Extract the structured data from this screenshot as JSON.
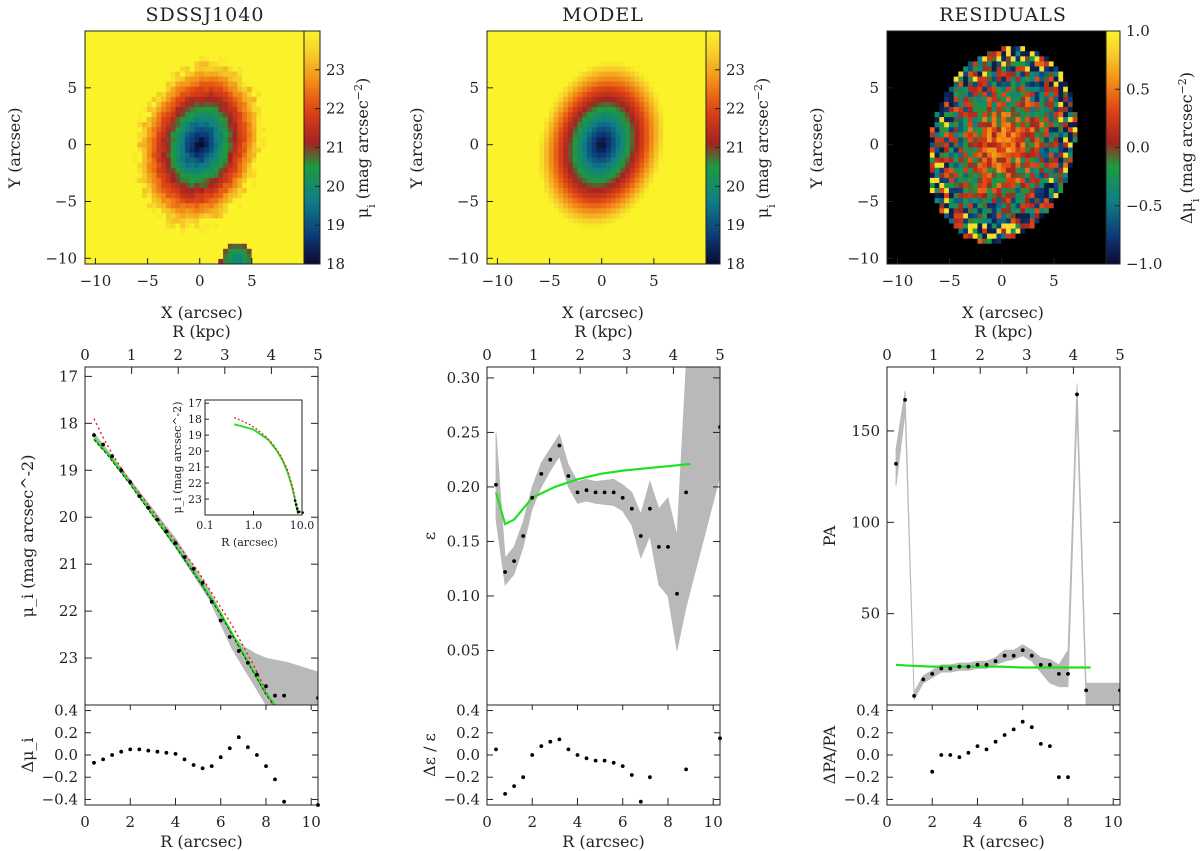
{
  "chart_data": [
    {
      "type": "heatmap",
      "title": "SDSSJ1040",
      "xlabel": "X (arcsec)",
      "ylabel": "Y (arcsec)",
      "xlim": [
        -11,
        10
      ],
      "ylim": [
        -10.5,
        10
      ],
      "xticks": [
        -10,
        -5,
        0,
        5
      ],
      "yticks": [
        -10,
        -5,
        0,
        5
      ],
      "colorbar": {
        "label": "μ_i (mag arcsec^-2)",
        "range": [
          18,
          24
        ],
        "ticks": [
          18,
          19,
          20,
          21,
          22,
          23
        ]
      },
      "image": {
        "center": [
          0,
          0
        ],
        "axis_ratio": 0.78,
        "pa_deg": 20,
        "noisy": true,
        "companion": [
          3.6,
          -10.2
        ]
      }
    },
    {
      "type": "heatmap",
      "title": "MODEL",
      "xlabel": "X (arcsec)",
      "ylabel": "Y (arcsec)",
      "xlim": [
        -11,
        10
      ],
      "ylim": [
        -10.5,
        10
      ],
      "xticks": [
        -10,
        -5,
        0,
        5
      ],
      "yticks": [
        -10,
        -5,
        0,
        5
      ],
      "colorbar": {
        "label": "μ_i (mag arcsec^-2)",
        "range": [
          18,
          24
        ],
        "ticks": [
          18,
          19,
          20,
          21,
          22,
          23
        ]
      },
      "image": {
        "center": [
          0,
          0
        ],
        "axis_ratio": 0.78,
        "pa_deg": 20,
        "noisy": false
      }
    },
    {
      "type": "heatmap",
      "title": "RESIDUALS",
      "xlabel": "X (arcsec)",
      "ylabel": "Y (arcsec)",
      "xlim": [
        -11,
        10
      ],
      "ylim": [
        -10.5,
        10
      ],
      "xticks": [
        -10,
        -5,
        0,
        5
      ],
      "yticks": [
        -10,
        -5,
        0,
        5
      ],
      "colorbar": {
        "label": "Δμ_i (mag arcsec^-2)",
        "range": [
          -1.0,
          1.0
        ],
        "ticks": [
          -1.0,
          -0.5,
          0.0,
          0.5,
          1.0
        ]
      },
      "image": {
        "center": [
          0,
          0
        ],
        "axis_ratio": 0.78,
        "pa_deg": 20,
        "mask_radius": 8.8
      }
    },
    {
      "type": "line",
      "xlabel": "R (arcsec)",
      "ylabel": "μ_i (mag arcsec^-2)",
      "top_xlabel": "R (kpc)",
      "xlim": [
        0,
        10.3
      ],
      "ylim": [
        24,
        16.8
      ],
      "xticks": [
        0,
        2,
        4,
        6,
        8,
        10
      ],
      "yticks": [
        17,
        18,
        19,
        20,
        21,
        22,
        23
      ],
      "top_xticks_kpc": [
        0,
        1,
        2,
        3,
        4,
        5
      ],
      "kpc_per_arcsec": 0.4854,
      "points_x": [
        0.4,
        0.8,
        1.2,
        1.6,
        2.0,
        2.4,
        2.8,
        3.2,
        3.6,
        4.0,
        4.4,
        4.8,
        5.2,
        5.6,
        6.0,
        6.4,
        6.8,
        7.2,
        7.6,
        8.0,
        8.4,
        8.8,
        10.3
      ],
      "points_y": [
        18.25,
        18.45,
        18.7,
        19.0,
        19.25,
        19.55,
        19.8,
        20.05,
        20.3,
        20.55,
        20.85,
        21.1,
        21.4,
        21.8,
        22.2,
        22.55,
        22.85,
        23.1,
        23.35,
        23.6,
        23.8,
        23.8,
        23.85
      ],
      "band_x": [
        0.4,
        2,
        4,
        5.5,
        6.5,
        7,
        7.5,
        8,
        9,
        10.3
      ],
      "band_lo": [
        18.2,
        19.2,
        20.45,
        21.55,
        22.5,
        22.75,
        22.9,
        23.0,
        23.1,
        23.3
      ],
      "band_hi": [
        18.3,
        19.3,
        20.65,
        21.75,
        22.8,
        23.2,
        23.6,
        24.0,
        24.0,
        24.0
      ],
      "model_x": [
        0.4,
        1,
        2,
        3,
        4,
        5,
        6,
        7,
        8,
        8.4
      ],
      "model_y": [
        18.32,
        18.65,
        19.28,
        19.95,
        20.6,
        21.3,
        22.05,
        22.9,
        23.75,
        24.0
      ],
      "dotted_x": [
        0.4,
        0.8,
        1.2,
        1.8,
        2.5,
        3.5,
        5,
        6.5,
        7.5,
        8.3
      ],
      "dotted_y": [
        17.9,
        18.3,
        18.65,
        19.1,
        19.55,
        20.2,
        21.15,
        22.3,
        23.2,
        24.0
      ],
      "residual": {
        "ylabel": "Δμ_i",
        "ylim": [
          -0.45,
          0.45
        ],
        "yticks": [
          -0.4,
          -0.2,
          0.0,
          0.2,
          0.4
        ],
        "x": [
          0.4,
          0.8,
          1.2,
          1.6,
          2.0,
          2.4,
          2.8,
          3.2,
          3.6,
          4.0,
          4.4,
          4.8,
          5.2,
          5.6,
          6.0,
          6.4,
          6.8,
          7.2,
          7.6,
          8.0,
          8.4,
          8.8,
          10.3
        ],
        "y": [
          -0.07,
          -0.04,
          0.0,
          0.03,
          0.05,
          0.05,
          0.04,
          0.03,
          0.02,
          0.01,
          -0.04,
          -0.09,
          -0.12,
          -0.1,
          -0.02,
          0.06,
          0.16,
          0.07,
          0.0,
          -0.1,
          -0.22,
          -0.42,
          -0.45
        ]
      },
      "inset": {
        "type": "line",
        "xlabel": "R (arcsec)",
        "ylabel": "μ_i (mag arcsec^-2)",
        "xscale": "log",
        "xlim": [
          0.1,
          10
        ],
        "ylim": [
          24,
          16.8
        ],
        "xticks": [
          0.1,
          1.0,
          10.0
        ],
        "xtick_labels": [
          "0.1",
          "1.0",
          "10.0"
        ],
        "yticks": [
          17,
          18,
          19,
          20,
          21,
          22,
          23
        ]
      }
    },
    {
      "type": "line",
      "xlabel": "R (arcsec)",
      "ylabel": "ε",
      "top_xlabel": "R (kpc)",
      "xlim": [
        0,
        10.3
      ],
      "ylim": [
        0,
        0.31
      ],
      "xticks": [
        0,
        2,
        4,
        6,
        8,
        10
      ],
      "yticks": [
        0.05,
        0.1,
        0.15,
        0.2,
        0.25,
        0.3
      ],
      "ytick_labels": [
        "0.05",
        "0.10",
        "0.15",
        "0.20",
        "0.25",
        "0.30"
      ],
      "top_xticks_kpc": [
        0,
        1,
        2,
        3,
        4,
        5
      ],
      "kpc_per_arcsec": 0.4854,
      "points_x": [
        0.4,
        0.8,
        1.2,
        1.6,
        2.0,
        2.4,
        2.8,
        3.2,
        3.6,
        4.0,
        4.4,
        4.8,
        5.2,
        5.6,
        6.0,
        6.4,
        6.8,
        7.2,
        7.6,
        8.0,
        8.4,
        8.8,
        10.3
      ],
      "points_y": [
        0.202,
        0.122,
        0.132,
        0.155,
        0.19,
        0.212,
        0.225,
        0.238,
        0.21,
        0.195,
        0.197,
        0.195,
        0.195,
        0.195,
        0.19,
        0.18,
        0.155,
        0.18,
        0.145,
        0.145,
        0.102,
        0.195,
        0.255
      ],
      "band_x": [
        0.4,
        0.8,
        1.2,
        1.6,
        2.0,
        2.4,
        2.8,
        3.2,
        3.6,
        4.0,
        4.4,
        4.8,
        5.2,
        5.6,
        6.0,
        6.4,
        6.8,
        7.2,
        7.6,
        8.0,
        8.4,
        8.8,
        10.3
      ],
      "band_lo": [
        0.17,
        0.11,
        0.12,
        0.145,
        0.18,
        0.2,
        0.215,
        0.228,
        0.2,
        0.185,
        0.187,
        0.185,
        0.184,
        0.183,
        0.178,
        0.165,
        0.135,
        0.155,
        0.11,
        0.1,
        0.05,
        0.09,
        0.21
      ],
      "band_hi": [
        0.25,
        0.135,
        0.145,
        0.168,
        0.2,
        0.222,
        0.235,
        0.248,
        0.22,
        0.205,
        0.207,
        0.205,
        0.206,
        0.207,
        0.202,
        0.195,
        0.175,
        0.205,
        0.18,
        0.19,
        0.155,
        0.31,
        0.31
      ],
      "model_x": [
        0.4,
        0.8,
        1.2,
        1.6,
        2.0,
        3.0,
        4.0,
        5.0,
        6.0,
        7.0,
        8.0,
        9.0
      ],
      "model_y": [
        0.195,
        0.166,
        0.17,
        0.18,
        0.19,
        0.2,
        0.207,
        0.212,
        0.215,
        0.217,
        0.219,
        0.221
      ],
      "residual": {
        "ylabel": "Δε / ε",
        "ylim": [
          -0.45,
          0.45
        ],
        "yticks": [
          -0.4,
          -0.2,
          0.0,
          0.2,
          0.4
        ],
        "x": [
          0.4,
          0.8,
          1.2,
          1.6,
          2.0,
          2.4,
          2.8,
          3.2,
          3.6,
          4.0,
          4.4,
          4.8,
          5.2,
          5.6,
          6.0,
          6.4,
          6.8,
          7.2,
          8.8,
          10.3
        ],
        "y": [
          0.05,
          -0.35,
          -0.28,
          -0.2,
          0.0,
          0.08,
          0.12,
          0.14,
          0.05,
          0.0,
          -0.03,
          -0.05,
          -0.05,
          -0.07,
          -0.1,
          -0.18,
          -0.42,
          -0.2,
          -0.13,
          0.15
        ]
      }
    },
    {
      "type": "line",
      "xlabel": "R (arcsec)",
      "ylabel": "PA",
      "top_xlabel": "R (kpc)",
      "xlim": [
        0,
        10.3
      ],
      "ylim": [
        0,
        185
      ],
      "xticks": [
        0,
        2,
        4,
        6,
        8,
        10
      ],
      "yticks": [
        50,
        100,
        150
      ],
      "top_xticks_kpc": [
        0,
        1,
        2,
        3,
        4,
        5
      ],
      "kpc_per_arcsec": 0.4854,
      "points_x": [
        0.4,
        0.8,
        1.2,
        1.6,
        2.0,
        2.4,
        2.8,
        3.2,
        3.6,
        4.0,
        4.4,
        4.8,
        5.2,
        5.6,
        6.0,
        6.4,
        6.8,
        7.2,
        7.6,
        8.0,
        8.4,
        8.8,
        10.3
      ],
      "points_y": [
        132,
        167,
        5,
        14,
        17,
        20,
        20,
        21,
        21,
        22,
        22,
        24,
        27,
        27,
        30,
        27,
        22,
        22,
        17,
        17,
        170,
        8,
        8
      ],
      "band_x": [
        0.4,
        0.8,
        1.2,
        1.6,
        2.0,
        2.4,
        2.8,
        3.2,
        3.6,
        4.0,
        4.4,
        4.8,
        5.2,
        5.6,
        6.0,
        6.4,
        6.8,
        7.2,
        7.6,
        8.0,
        8.4,
        8.8,
        10.3
      ],
      "band_lo": [
        120,
        160,
        3,
        12,
        15,
        18,
        18,
        19,
        19,
        20,
        20,
        22,
        24,
        25,
        27,
        24,
        18,
        12,
        10,
        10,
        160,
        0,
        0
      ],
      "band_hi": [
        140,
        172,
        7,
        16,
        19,
        22,
        22,
        23,
        23,
        24,
        24,
        26,
        30,
        30,
        33,
        30,
        26,
        25,
        22,
        30,
        176,
        12,
        12
      ],
      "model_x": [
        0.4,
        1,
        2,
        3,
        4,
        5,
        6,
        7,
        8,
        9
      ],
      "model_y": [
        22,
        21.5,
        21,
        21,
        21,
        21,
        20.5,
        20.5,
        20.5,
        20.5
      ],
      "residual": {
        "ylabel": "ΔPA/PA",
        "ylim": [
          -0.45,
          0.45
        ],
        "yticks": [
          -0.4,
          -0.2,
          0.0,
          0.2,
          0.4
        ],
        "x": [
          2.0,
          2.4,
          2.8,
          3.2,
          3.6,
          4.0,
          4.4,
          4.8,
          5.2,
          5.6,
          6.0,
          6.4,
          6.8,
          7.2,
          7.6,
          8.0
        ],
        "y": [
          -0.15,
          0.0,
          0.0,
          -0.02,
          0.02,
          0.08,
          0.05,
          0.12,
          0.18,
          0.23,
          0.3,
          0.25,
          0.1,
          0.08,
          -0.2,
          -0.2
        ]
      }
    }
  ]
}
